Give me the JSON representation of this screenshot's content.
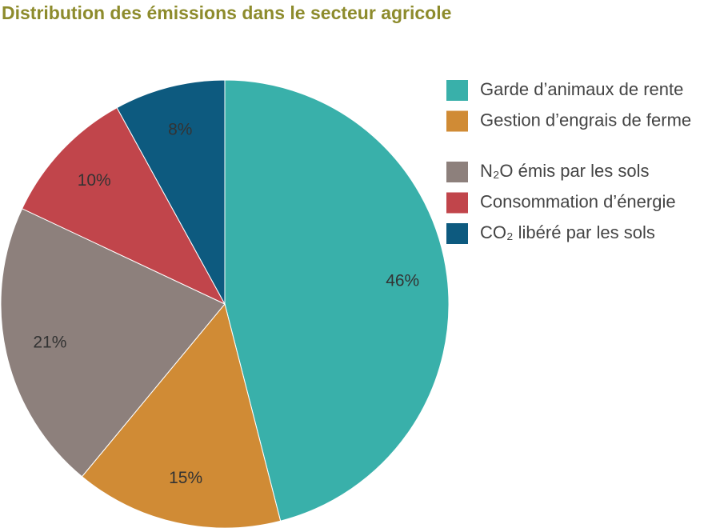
{
  "chart_data": {
    "type": "pie",
    "title": "Distribution des émissions dans le secteur agricole",
    "categories": [
      "Garde d’animaux de rente",
      "Gestion d’engrais de ferme",
      "N₂O émis par les sols",
      "Consommation d’énergie",
      "CO₂ libéré par les sols"
    ],
    "values": [
      46,
      15,
      21,
      10,
      8
    ],
    "value_labels": [
      "46%",
      "15%",
      "21%",
      "10%",
      "8%"
    ],
    "colors": [
      "#39b0aa",
      "#d08b35",
      "#8d807c",
      "#c1454b",
      "#0d5a7f"
    ]
  }
}
